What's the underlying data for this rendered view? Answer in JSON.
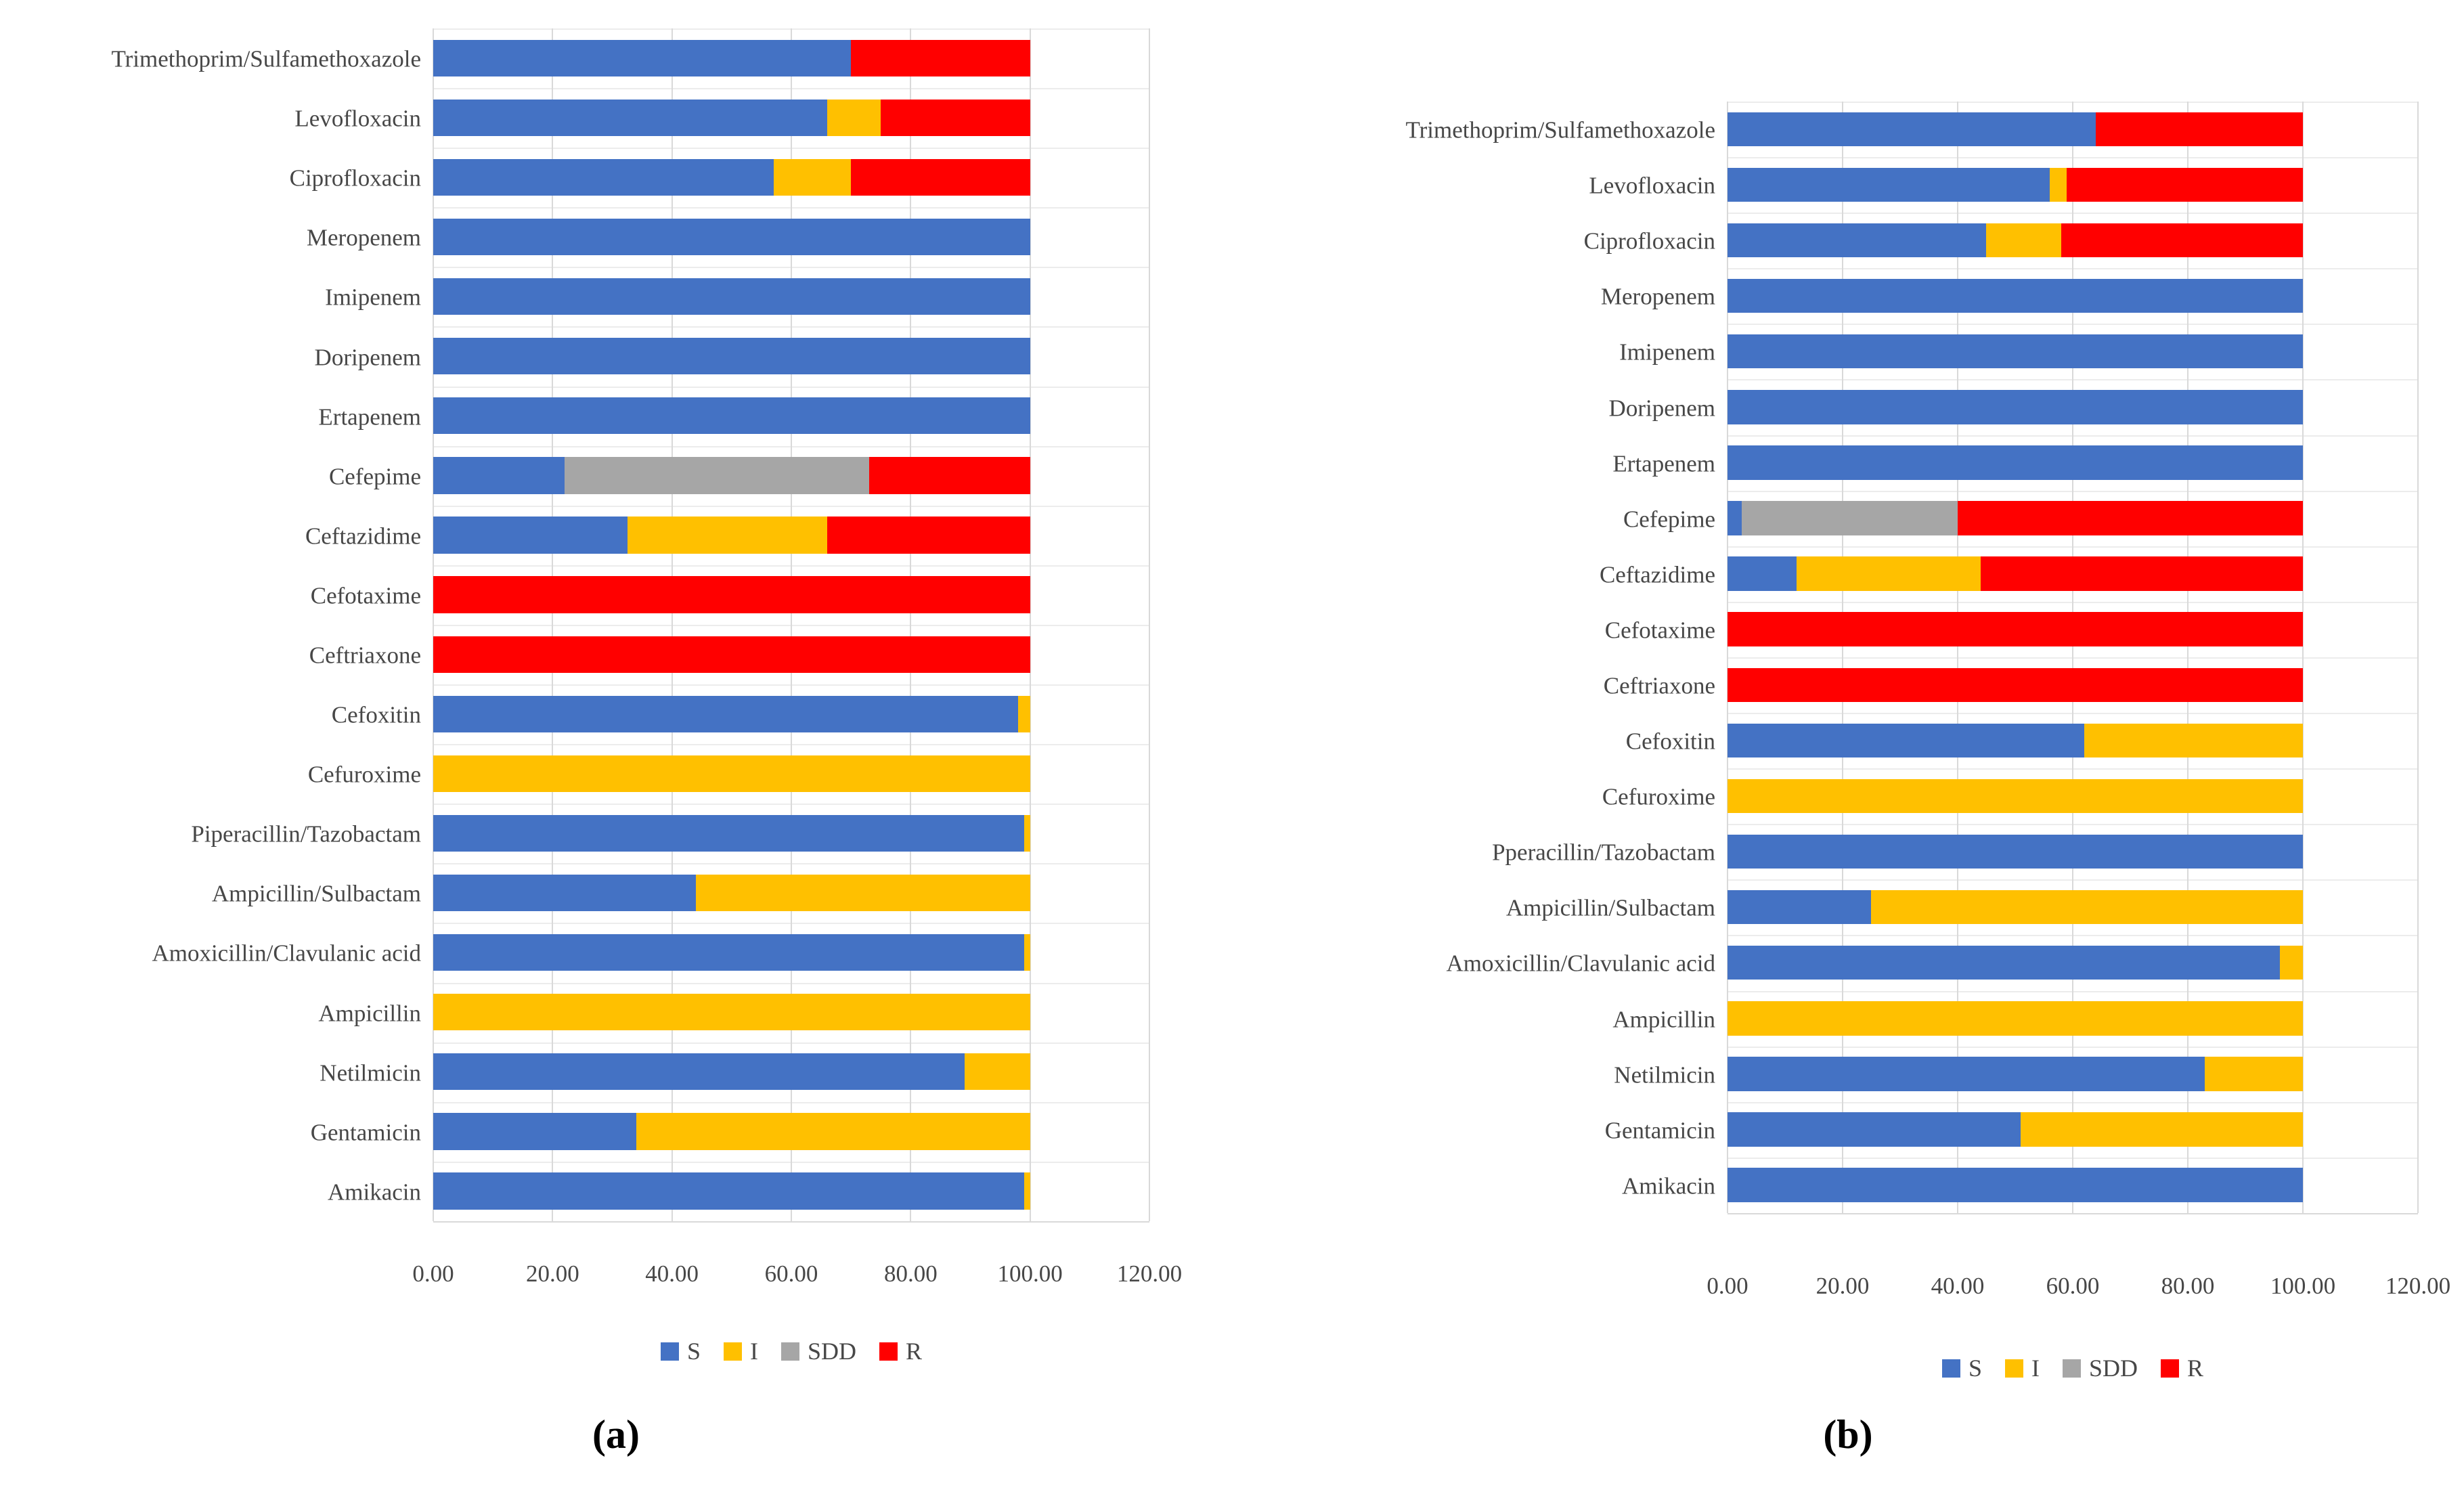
{
  "page": {
    "background": "#ffffff"
  },
  "colors": {
    "S": "#4472C4",
    "I": "#FFC000",
    "SDD": "#A6A6A6",
    "R": "#FF0000",
    "gridline": "#D9D9D9",
    "band_line": "#ECECEC",
    "text": "#474747"
  },
  "chart_data": [
    {
      "type": "bar",
      "orientation": "horizontal",
      "stacked": true,
      "caption": "(a)",
      "xlim": [
        0,
        120
      ],
      "x_tick_labels": [
        "0.00",
        "20.00",
        "40.00",
        "60.00",
        "80.00",
        "100.00",
        "120.00"
      ],
      "grid": "vertical",
      "legend_position": "bottom",
      "legend": [
        "S",
        "I",
        "SDD",
        "R"
      ],
      "categories": [
        "Trimethoprim/Sulfamethoxazole",
        "Levofloxacin",
        "Ciprofloxacin",
        "Meropenem",
        "Imipenem",
        "Doripenem",
        "Ertapenem",
        "Cefepime",
        "Ceftazidime",
        "Cefotaxime",
        "Ceftriaxone",
        "Cefoxitin",
        "Cefuroxime",
        "Piperacillin/Tazobactam",
        "Ampicillin/Sulbactam",
        "Amoxicillin/Clavulanic acid",
        "Ampicillin",
        "Netilmicin",
        "Gentamicin",
        "Amikacin"
      ],
      "series": [
        {
          "name": "S",
          "values": [
            70,
            66,
            57,
            100,
            100,
            100,
            100,
            22,
            32.5,
            0,
            0,
            98,
            0,
            99,
            44,
            99,
            0,
            89,
            34,
            99
          ]
        },
        {
          "name": "I",
          "values": [
            0,
            9,
            13,
            0,
            0,
            0,
            0,
            0,
            33.5,
            0,
            0,
            2,
            100,
            1,
            56,
            1,
            100,
            11,
            66,
            1
          ]
        },
        {
          "name": "SDD",
          "values": [
            0,
            0,
            0,
            0,
            0,
            0,
            0,
            51,
            0,
            0,
            0,
            0,
            0,
            0,
            0,
            0,
            0,
            0,
            0,
            0
          ]
        },
        {
          "name": "R",
          "values": [
            30,
            25,
            30,
            0,
            0,
            0,
            0,
            27,
            34,
            100,
            100,
            0,
            0,
            0,
            0,
            0,
            0,
            0,
            0,
            0
          ]
        }
      ]
    },
    {
      "type": "bar",
      "orientation": "horizontal",
      "stacked": true,
      "caption": "(b)",
      "xlim": [
        0,
        120
      ],
      "x_tick_labels": [
        "0.00",
        "20.00",
        "40.00",
        "60.00",
        "80.00",
        "100.00",
        "120.00"
      ],
      "grid": "vertical",
      "legend_position": "bottom",
      "legend": [
        "S",
        "I",
        "SDD",
        "R"
      ],
      "categories": [
        "Trimethoprim/Sulfamethoxazole",
        "Levofloxacin",
        "Ciprofloxacin",
        "Meropenem",
        "Imipenem",
        "Doripenem",
        "Ertapenem",
        "Cefepime",
        "Ceftazidime",
        "Cefotaxime",
        "Ceftriaxone",
        "Cefoxitin",
        "Cefuroxime",
        "Pperacillin/Tazobactam",
        "Ampicillin/Sulbactam",
        "Amoxicillin/Clavulanic acid",
        "Ampicillin",
        "Netilmicin",
        "Gentamicin",
        "Amikacin"
      ],
      "series": [
        {
          "name": "S",
          "values": [
            64,
            56,
            45,
            100,
            100,
            100,
            100,
            2.5,
            12,
            0,
            0,
            62,
            0,
            100,
            25,
            96,
            0,
            83,
            51,
            100
          ]
        },
        {
          "name": "I",
          "values": [
            0,
            3,
            13,
            0,
            0,
            0,
            0,
            0,
            32,
            0,
            0,
            38,
            100,
            0,
            75,
            4,
            100,
            17,
            49,
            0
          ]
        },
        {
          "name": "SDD",
          "values": [
            0,
            0,
            0,
            0,
            0,
            0,
            0,
            37.5,
            0,
            0,
            0,
            0,
            0,
            0,
            0,
            0,
            0,
            0,
            0,
            0
          ]
        },
        {
          "name": "R",
          "values": [
            36,
            41,
            42,
            0,
            0,
            0,
            0,
            60,
            56,
            100,
            100,
            0,
            0,
            0,
            0,
            0,
            0,
            0,
            0,
            0
          ]
        }
      ]
    }
  ]
}
